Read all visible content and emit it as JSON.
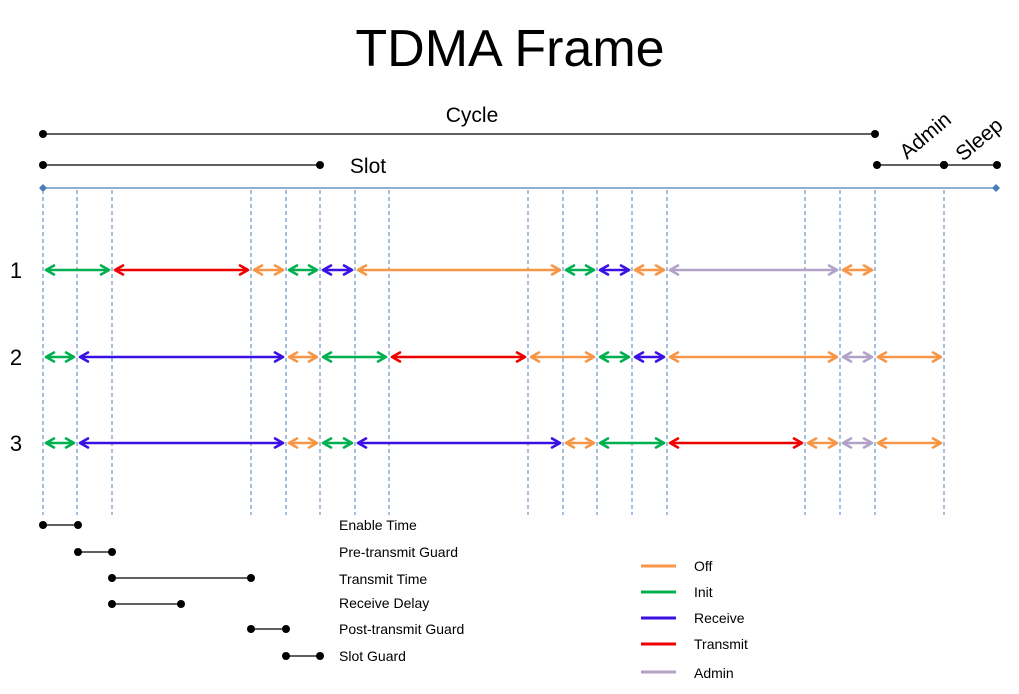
{
  "title": "TDMA Frame",
  "top_labels": {
    "cycle": "Cycle",
    "slot": "Slot",
    "admin": "Admin",
    "sleep": "Sleep"
  },
  "row_labels": [
    "1",
    "2",
    "3"
  ],
  "colors": {
    "off": "#f79646",
    "init": "#00b050",
    "receive": "#3a10e5",
    "transmit": "#ee0000",
    "admin": "#b3a2c7",
    "guide": "#4a7ebb",
    "timeline": "#4a7ebb",
    "dimension": "#000000"
  },
  "rows": [
    [
      "init",
      "transmit",
      "off",
      "init",
      "receive",
      "off",
      "init",
      "receive",
      "off",
      "admin",
      "off"
    ],
    [
      "init",
      "receive",
      "off",
      "init",
      "transmit",
      "off",
      "init",
      "receive",
      "off",
      "admin",
      "off"
    ],
    [
      "init",
      "receive",
      "off",
      "init",
      "receive",
      "off",
      "init",
      "transmit",
      "off",
      "admin",
      "off"
    ]
  ],
  "timing_legend": [
    "Enable Time",
    "Pre-transmit Guard",
    "Transmit Time",
    "Receive Delay",
    "Post-transmit Guard",
    "Slot Guard"
  ],
  "state_legend": [
    {
      "key": "off",
      "label": "Off"
    },
    {
      "key": "init",
      "label": "Init"
    },
    {
      "key": "receive",
      "label": "Receive"
    },
    {
      "key": "transmit",
      "label": "Transmit"
    },
    {
      "key": "admin",
      "label": "Admin"
    }
  ]
}
